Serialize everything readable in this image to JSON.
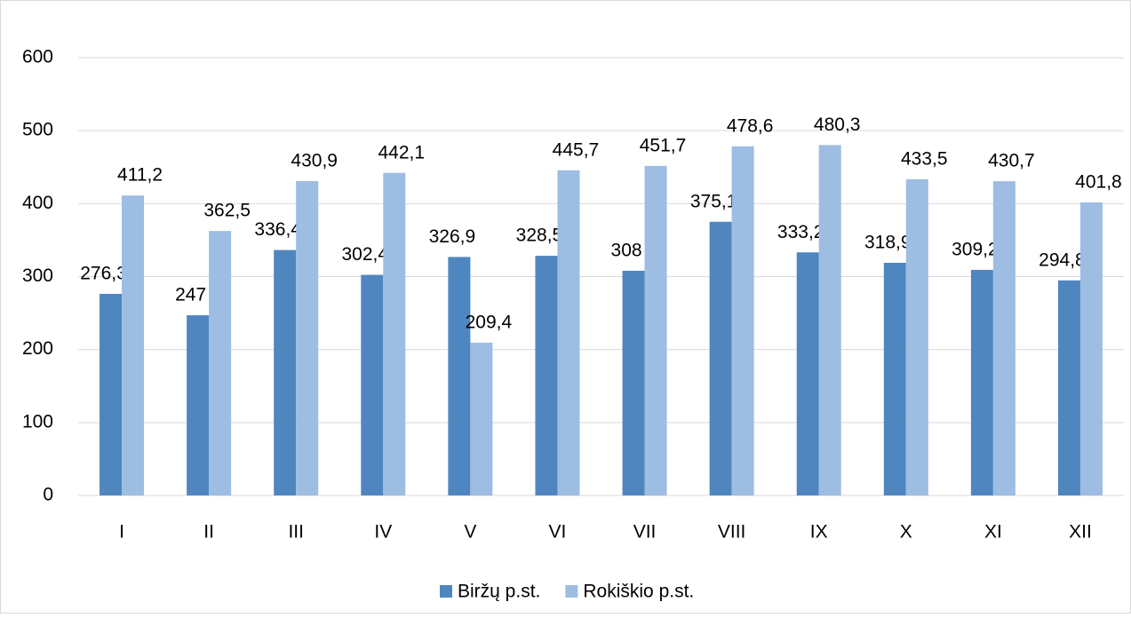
{
  "chart_data": {
    "type": "bar",
    "categories": [
      "I",
      "II",
      "III",
      "IV",
      "V",
      "VI",
      "VII",
      "VIII",
      "IX",
      "X",
      "XI",
      "XII"
    ],
    "series": [
      {
        "name": "Biržų p.st.",
        "color": "#4f86c0",
        "values": [
          276.3,
          247,
          336.4,
          302.4,
          326.9,
          328.5,
          308,
          375.1,
          333.2,
          318.9,
          309.2,
          294.8
        ],
        "value_labels": [
          "276,3",
          "247",
          "336,4",
          "302,4",
          "326,9",
          "328,5",
          "308",
          "375,1",
          "333,2",
          "318,9",
          "309,2",
          "294,8"
        ]
      },
      {
        "name": "Rokiškio p.st.",
        "color": "#9dbde2",
        "values": [
          411.2,
          362.5,
          430.9,
          442.1,
          209.4,
          445.7,
          451.7,
          478.6,
          480.3,
          433.5,
          430.7,
          401.8
        ],
        "value_labels": [
          "411,2",
          "362,5",
          "430,9",
          "442,1",
          "209,4",
          "445,7",
          "451,7",
          "478,6",
          "480,3",
          "433,5",
          "430,7",
          "401,8"
        ]
      }
    ],
    "ylim": [
      0,
      600
    ],
    "yticks": [
      0,
      100,
      200,
      300,
      400,
      500,
      600
    ],
    "grid": true,
    "legend": "bottom"
  }
}
